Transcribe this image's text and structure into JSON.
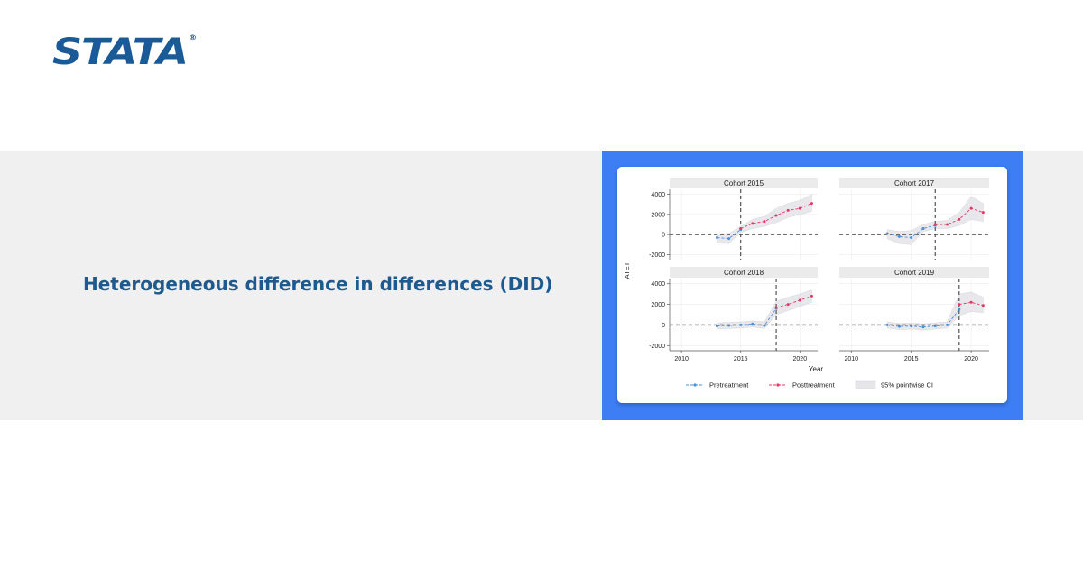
{
  "header": {
    "logo_text": "STATA",
    "logo_mark": "®"
  },
  "hero": {
    "headline": "Heterogeneous difference in differences (DID)"
  },
  "chart_data": {
    "type": "line",
    "layout": "2x2 facets",
    "ylabel": "ATET",
    "xlabel": "Year",
    "xlim": [
      2009,
      2021.5
    ],
    "ylim": [
      -2500,
      4500
    ],
    "xticks": [
      2010,
      2015,
      2020
    ],
    "yticks": [
      -2000,
      0,
      2000,
      4000
    ],
    "reference_line_y": 0,
    "legend": {
      "placement": "bottom",
      "entries": [
        "Pretreatment",
        "Posttreatment",
        "95% pointwise CI"
      ]
    },
    "colors": {
      "pretreatment": "#4a90d9",
      "posttreatment": "#e03a64",
      "ci_fill": "#e6e6ea",
      "strip": "#ebebeb"
    },
    "panels": [
      {
        "title": "Cohort 2015",
        "treatment_year": 2015,
        "pre": {
          "x": [
            2013,
            2014,
            2015
          ],
          "y": [
            -300,
            -400,
            500
          ]
        },
        "post": {
          "x": [
            2015,
            2016,
            2017,
            2018,
            2019,
            2020,
            2021
          ],
          "y": [
            600,
            1100,
            1300,
            1900,
            2400,
            2600,
            3100
          ]
        },
        "ci_lower": [
          -800,
          -900,
          200,
          600,
          800,
          1200,
          1700,
          2000,
          2300
        ],
        "ci_upper": [
          100,
          100,
          800,
          1500,
          1800,
          2600,
          3100,
          3400,
          4000
        ],
        "ci_x": [
          2013,
          2014,
          2015,
          2016,
          2017,
          2018,
          2019,
          2020,
          2021
        ]
      },
      {
        "title": "Cohort 2017",
        "treatment_year": 2017,
        "pre": {
          "x": [
            2013,
            2014,
            2015,
            2016,
            2017
          ],
          "y": [
            100,
            -200,
            -300,
            600,
            900
          ]
        },
        "post": {
          "x": [
            2017,
            2018,
            2019,
            2020,
            2021
          ],
          "y": [
            1000,
            1000,
            1500,
            2600,
            2200
          ]
        },
        "ci_lower": [
          -400,
          -900,
          -1000,
          300,
          600,
          600,
          900,
          1500,
          1300
        ],
        "ci_upper": [
          500,
          300,
          400,
          1000,
          1300,
          1400,
          2200,
          3800,
          3100
        ],
        "ci_x": [
          2013,
          2014,
          2015,
          2016,
          2017,
          2018,
          2019,
          2020,
          2021
        ]
      },
      {
        "title": "Cohort 2018",
        "treatment_year": 2018,
        "pre": {
          "x": [
            2013,
            2014,
            2015,
            2016,
            2017,
            2018
          ],
          "y": [
            -100,
            -50,
            0,
            100,
            -50,
            1600
          ]
        },
        "post": {
          "x": [
            2018,
            2019,
            2020,
            2021
          ],
          "y": [
            1700,
            2000,
            2400,
            2800
          ]
        },
        "ci_lower": [
          -400,
          -350,
          -300,
          -200,
          -350,
          1000,
          1400,
          1800,
          2200
        ],
        "ci_upper": [
          200,
          250,
          300,
          400,
          300,
          2300,
          2700,
          3000,
          3400
        ],
        "ci_x": [
          2013,
          2014,
          2015,
          2016,
          2017,
          2018,
          2019,
          2020,
          2021
        ]
      },
      {
        "title": "Cohort 2019",
        "treatment_year": 2019,
        "pre": {
          "x": [
            2013,
            2014,
            2015,
            2016,
            2017,
            2018,
            2019
          ],
          "y": [
            0,
            -150,
            -100,
            -200,
            -100,
            0,
            1500
          ]
        },
        "post": {
          "x": [
            2019,
            2020,
            2021
          ],
          "y": [
            2000,
            2200,
            1900
          ]
        },
        "ci_lower": [
          -300,
          -450,
          -400,
          -500,
          -400,
          -300,
          900,
          1300,
          1200
        ],
        "ci_upper": [
          300,
          150,
          200,
          100,
          200,
          300,
          3000,
          3200,
          2700
        ],
        "ci_x": [
          2013,
          2014,
          2015,
          2016,
          2017,
          2018,
          2019,
          2020,
          2021
        ]
      }
    ]
  }
}
